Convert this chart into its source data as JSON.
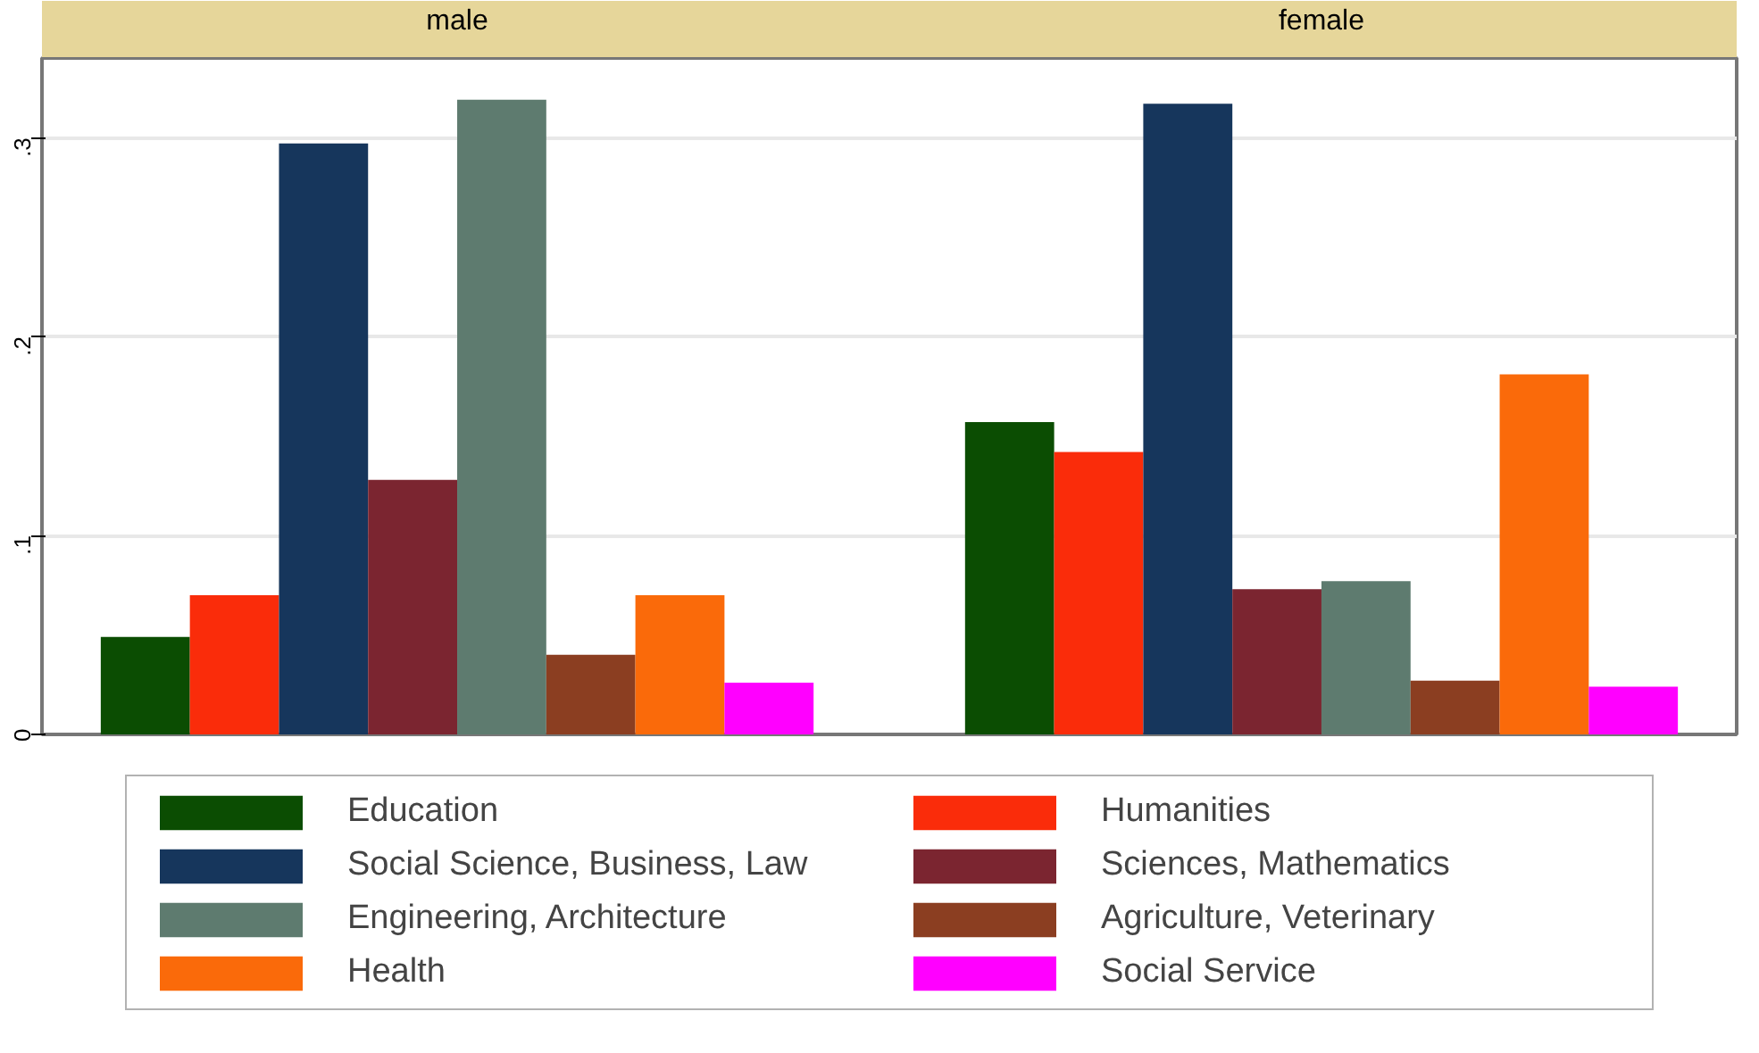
{
  "chart_data": {
    "type": "bar",
    "categories": [
      "male",
      "female"
    ],
    "ylim": [
      0,
      0.34
    ],
    "yticks": [
      {
        "value": 0,
        "label": "0"
      },
      {
        "value": 0.1,
        "label": ".1"
      },
      {
        "value": 0.2,
        "label": ".2"
      },
      {
        "value": 0.3,
        "label": ".3"
      }
    ],
    "grid": "y",
    "legend": "bottom",
    "series": [
      {
        "name": "Education",
        "color": "#0b4d02",
        "values": [
          0.049,
          0.157
        ]
      },
      {
        "name": "Humanities",
        "color": "#fa2c0a",
        "values": [
          0.07,
          0.142
        ]
      },
      {
        "name": "Social Science, Business, Law",
        "color": "#16365c",
        "values": [
          0.297,
          0.317
        ]
      },
      {
        "name": "Sciences, Mathematics",
        "color": "#7b2530",
        "values": [
          0.128,
          0.073
        ]
      },
      {
        "name": "Engineering, Architecture",
        "color": "#5e7b6f",
        "values": [
          0.319,
          0.077
        ]
      },
      {
        "name": "Agriculture, Veterinary",
        "color": "#8b3e21",
        "values": [
          0.04,
          0.027
        ]
      },
      {
        "name": "Health",
        "color": "#fa6a0a",
        "values": [
          0.07,
          0.181
        ]
      },
      {
        "name": "Social Service",
        "color": "#ff00ff",
        "values": [
          0.026,
          0.024
        ]
      }
    ]
  }
}
